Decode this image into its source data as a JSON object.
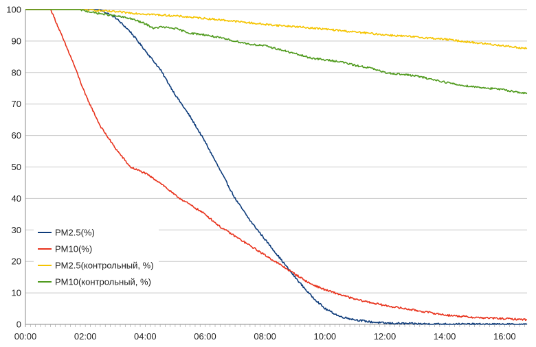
{
  "chart_data": {
    "type": "line",
    "title": "",
    "xlabel": "",
    "ylabel": "",
    "x_unit": "hours",
    "xlim": [
      0,
      16.75
    ],
    "ylim": [
      0,
      100
    ],
    "y_ticks": [
      0,
      10,
      20,
      30,
      40,
      50,
      60,
      70,
      80,
      90,
      100
    ],
    "x_ticks": [
      0,
      2,
      4,
      6,
      8,
      10,
      12,
      14,
      16
    ],
    "x_tick_labels": [
      "00:00",
      "02:00",
      "04:00",
      "06:00",
      "08:00",
      "10:00",
      "12:00",
      "14:00",
      "16:00"
    ],
    "grid": "horizontal",
    "legend_position": "bottom-left",
    "series": [
      {
        "name": "PM2.5(%)",
        "color": "#0d3b7a",
        "points": [
          [
            0,
            100
          ],
          [
            2.5,
            100
          ],
          [
            3,
            97.5
          ],
          [
            3.5,
            93
          ],
          [
            4,
            87
          ],
          [
            4.5,
            81
          ],
          [
            5,
            73
          ],
          [
            5.5,
            66
          ],
          [
            6,
            58
          ],
          [
            6.5,
            49
          ],
          [
            7,
            40
          ],
          [
            7.5,
            33
          ],
          [
            8,
            27
          ],
          [
            8.5,
            21
          ],
          [
            9,
            15
          ],
          [
            9.5,
            9.5
          ],
          [
            10,
            5
          ],
          [
            10.5,
            2.5
          ],
          [
            11,
            1.5
          ],
          [
            11.5,
            0.8
          ],
          [
            12,
            0.4
          ],
          [
            13,
            0.2
          ],
          [
            14,
            0.1
          ],
          [
            16.75,
            0
          ]
        ]
      },
      {
        "name": "PM10(%)",
        "color": "#e8321c",
        "points": [
          [
            0,
            100
          ],
          [
            0.85,
            100
          ],
          [
            1.2,
            92
          ],
          [
            1.6,
            83
          ],
          [
            2,
            73
          ],
          [
            2.5,
            63
          ],
          [
            3,
            56
          ],
          [
            3.5,
            50
          ],
          [
            4,
            48
          ],
          [
            4.5,
            45
          ],
          [
            5,
            41
          ],
          [
            5.5,
            38
          ],
          [
            6,
            35
          ],
          [
            6.5,
            31
          ],
          [
            7,
            28
          ],
          [
            7.5,
            25
          ],
          [
            8,
            22
          ],
          [
            8.5,
            19
          ],
          [
            9,
            16
          ],
          [
            9.5,
            13
          ],
          [
            10,
            11
          ],
          [
            10.5,
            9.5
          ],
          [
            11,
            8
          ],
          [
            12,
            6
          ],
          [
            13,
            4.5
          ],
          [
            14,
            3
          ],
          [
            15,
            2.2
          ],
          [
            16,
            1.8
          ],
          [
            16.75,
            1.5
          ]
        ]
      },
      {
        "name": "PM2.5(контрольный, %)",
        "color": "#f5c400",
        "points": [
          [
            0,
            100
          ],
          [
            2,
            100
          ],
          [
            3,
            99.3
          ],
          [
            4,
            98.6
          ],
          [
            5,
            98
          ],
          [
            6,
            97.2
          ],
          [
            7,
            96.3
          ],
          [
            8,
            95.3
          ],
          [
            9,
            94.6
          ],
          [
            10,
            93.8
          ],
          [
            11,
            92.9
          ],
          [
            12,
            92
          ],
          [
            13,
            91.3
          ],
          [
            14,
            90.6
          ],
          [
            15,
            89.5
          ],
          [
            16,
            88.5
          ],
          [
            16.75,
            87.6
          ]
        ]
      },
      {
        "name": "PM10(контрольный, %)",
        "color": "#4f9a1d",
        "points": [
          [
            0,
            100
          ],
          [
            1.8,
            100
          ],
          [
            2.3,
            99
          ],
          [
            3,
            98
          ],
          [
            3.5,
            97.2
          ],
          [
            4,
            95.5
          ],
          [
            4.3,
            94
          ],
          [
            4.5,
            94.5
          ],
          [
            5,
            94
          ],
          [
            5.5,
            92.5
          ],
          [
            6,
            92
          ],
          [
            6.5,
            91
          ],
          [
            7,
            90
          ],
          [
            7.5,
            89
          ],
          [
            8,
            88.5
          ],
          [
            8.5,
            87.3
          ],
          [
            9,
            86
          ],
          [
            9.5,
            84.7
          ],
          [
            10,
            84
          ],
          [
            10.5,
            83.5
          ],
          [
            11,
            82.3
          ],
          [
            11.5,
            81.5
          ],
          [
            12,
            80
          ],
          [
            12.5,
            79.5
          ],
          [
            13,
            79
          ],
          [
            13.5,
            78
          ],
          [
            14,
            77
          ],
          [
            14.5,
            76
          ],
          [
            15,
            75.5
          ],
          [
            15.5,
            75
          ],
          [
            16,
            74.5
          ],
          [
            16.75,
            73.3
          ]
        ]
      }
    ]
  }
}
